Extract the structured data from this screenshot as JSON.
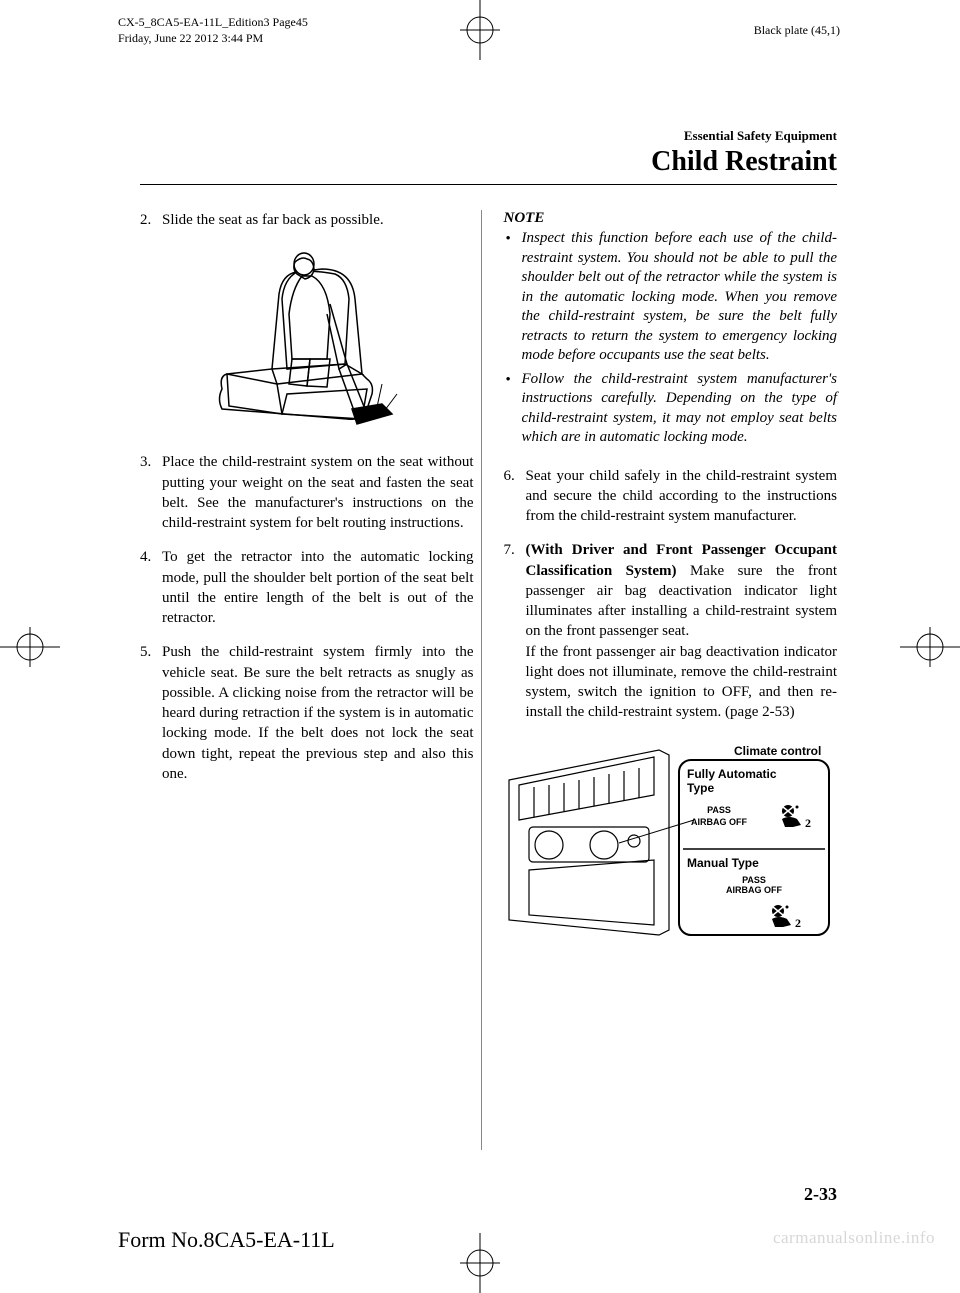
{
  "header": {
    "doc_id_line1": "CX-5_8CA5-EA-11L_Edition3 Page45",
    "doc_id_line2": "Friday, June 22 2012 3:44 PM",
    "plate_label": "Black plate (45,1)"
  },
  "section": {
    "subtitle": "Essential Safety Equipment",
    "title": "Child Restraint"
  },
  "left_column": {
    "item2": {
      "num": "2.",
      "text": "Slide the seat as far back as possible."
    },
    "item3": {
      "num": "3.",
      "text": "Place the child-restraint system on the seat without putting your weight on the seat and fasten the seat belt. See the manufacturer's instructions on the child-restraint system for belt routing instructions."
    },
    "item4": {
      "num": "4.",
      "text": "To get the retractor into the automatic locking mode, pull the shoulder belt portion of the seat belt until the entire length of the belt is out of the retractor."
    },
    "item5": {
      "num": "5.",
      "text": "Push the child-restraint system firmly into the vehicle seat. Be sure the belt retracts as snugly as possible. A clicking noise from the retractor will be heard during retraction if the system is in automatic locking mode. If the belt does not lock the seat down tight, repeat the previous step and also this one."
    }
  },
  "right_column": {
    "note_heading": "NOTE",
    "note1": "Inspect this function before each use of the child-restraint system. You should not be able to pull the shoulder belt out of the retractor while the system is in the automatic locking mode. When you remove the child-restraint system, be sure the belt fully retracts to return the system to emergency locking mode before occupants use the seat belts.",
    "note2": "Follow the child-restraint system manufacturer's instructions carefully. Depending on the type of child-restraint system, it may not employ seat belts which are in automatic locking mode.",
    "item6": {
      "num": "6.",
      "text": "Seat your child safely in the child-restraint system and secure the child according to the instructions from the child-restraint system manufacturer."
    },
    "item7": {
      "num": "7.",
      "bold": "(With Driver and Front Passenger Occupant Classification System)",
      "text": "Make sure the front passenger air bag deactivation indicator light illuminates after installing a child-restraint system on the front passenger seat.",
      "text2": "If the front passenger air bag deactivation indicator light does not illuminate, remove the child-restraint system, switch the ignition to OFF, and then re-install the child-restraint system. (page 2-53)"
    },
    "climate": {
      "label": "Climate control",
      "auto_type": "Fully Automatic Type",
      "manual_type": "Manual Type",
      "pass": "PASS",
      "airbag_off": "AIRBAG OFF"
    }
  },
  "footer": {
    "page_number": "2-33",
    "form_number": "Form No.8CA5-EA-11L",
    "watermark": "carmanualsonline.info"
  }
}
